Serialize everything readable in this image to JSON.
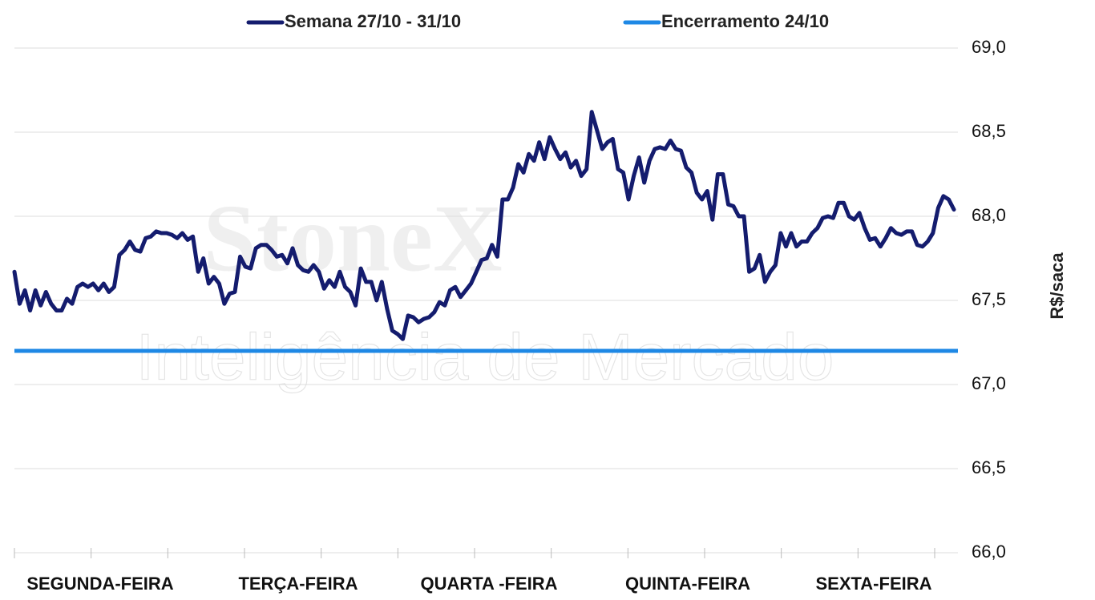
{
  "chart_data": {
    "type": "line",
    "y_label": "R$/saca",
    "watermark": [
      "StoneX",
      "Inteligência de Mercado"
    ],
    "day_labels": [
      "SEGUNDA-FEIRA",
      "TERÇA-FEIRA",
      "QUARTA -FEIRA",
      "QUINTA-FEIRA",
      "SEXTA-FEIRA"
    ],
    "ylim": [
      66.0,
      69.0
    ],
    "yticks": [
      {
        "value": 66.0,
        "label": "66,0"
      },
      {
        "value": 66.5,
        "label": "66,5"
      },
      {
        "value": 67.0,
        "label": "67,0"
      },
      {
        "value": 67.5,
        "label": "67,5"
      },
      {
        "value": 68.0,
        "label": "68,0"
      },
      {
        "value": 68.5,
        "label": "68,5"
      },
      {
        "value": 69.0,
        "label": "69,0"
      }
    ],
    "grid": true,
    "series": [
      {
        "name": "Semana 27/10 - 31/10",
        "color": "#141c6e",
        "values": [
          67.67,
          67.48,
          67.56,
          67.44,
          67.56,
          67.47,
          67.55,
          67.48,
          67.44,
          67.44,
          67.51,
          67.48,
          67.58,
          67.6,
          67.58,
          67.6,
          67.56,
          67.6,
          67.55,
          67.58,
          67.77,
          67.8,
          67.85,
          67.8,
          67.79,
          67.87,
          67.88,
          67.91,
          67.9,
          67.9,
          67.89,
          67.87,
          67.9,
          67.86,
          67.88,
          67.67,
          67.75,
          67.6,
          67.64,
          67.6,
          67.48,
          67.54,
          67.55,
          67.76,
          67.7,
          67.69,
          67.81,
          67.83,
          67.83,
          67.8,
          67.76,
          67.77,
          67.72,
          67.81,
          67.71,
          67.68,
          67.67,
          67.71,
          67.67,
          67.57,
          67.62,
          67.58,
          67.67,
          67.58,
          67.55,
          67.47,
          67.69,
          67.61,
          67.61,
          67.5,
          67.61,
          67.45,
          67.32,
          67.3,
          67.27,
          67.41,
          67.4,
          67.37,
          67.39,
          67.4,
          67.43,
          67.49,
          67.47,
          67.56,
          67.58,
          67.52,
          67.56,
          67.6,
          67.67,
          67.74,
          67.75,
          67.83,
          67.76,
          68.1,
          68.1,
          68.17,
          68.31,
          68.26,
          68.37,
          68.33,
          68.44,
          68.34,
          68.47,
          68.4,
          68.34,
          68.38,
          68.29,
          68.33,
          68.24,
          68.28,
          68.62,
          68.51,
          68.4,
          68.44,
          68.46,
          68.28,
          68.26,
          68.1,
          68.24,
          68.35,
          68.2,
          68.33,
          68.4,
          68.41,
          68.4,
          68.45,
          68.4,
          68.39,
          68.29,
          68.26,
          68.14,
          68.1,
          68.15,
          67.98,
          68.25,
          68.25,
          68.07,
          68.06,
          68.0,
          68.0,
          67.67,
          67.69,
          67.77,
          67.61,
          67.67,
          67.71,
          67.9,
          67.82,
          67.9,
          67.82,
          67.85,
          67.85,
          67.9,
          67.93,
          67.99,
          68.0,
          67.99,
          68.08,
          68.08,
          68.0,
          67.98,
          68.02,
          67.93,
          67.86,
          67.87,
          67.82,
          67.87,
          67.93,
          67.9,
          67.89,
          67.91,
          67.91,
          67.83,
          67.82,
          67.85,
          67.9,
          68.05,
          68.12,
          68.1,
          68.04
        ]
      },
      {
        "name": "Encerramento 24/10",
        "color": "#1e88e5",
        "value": 67.2
      }
    ]
  }
}
